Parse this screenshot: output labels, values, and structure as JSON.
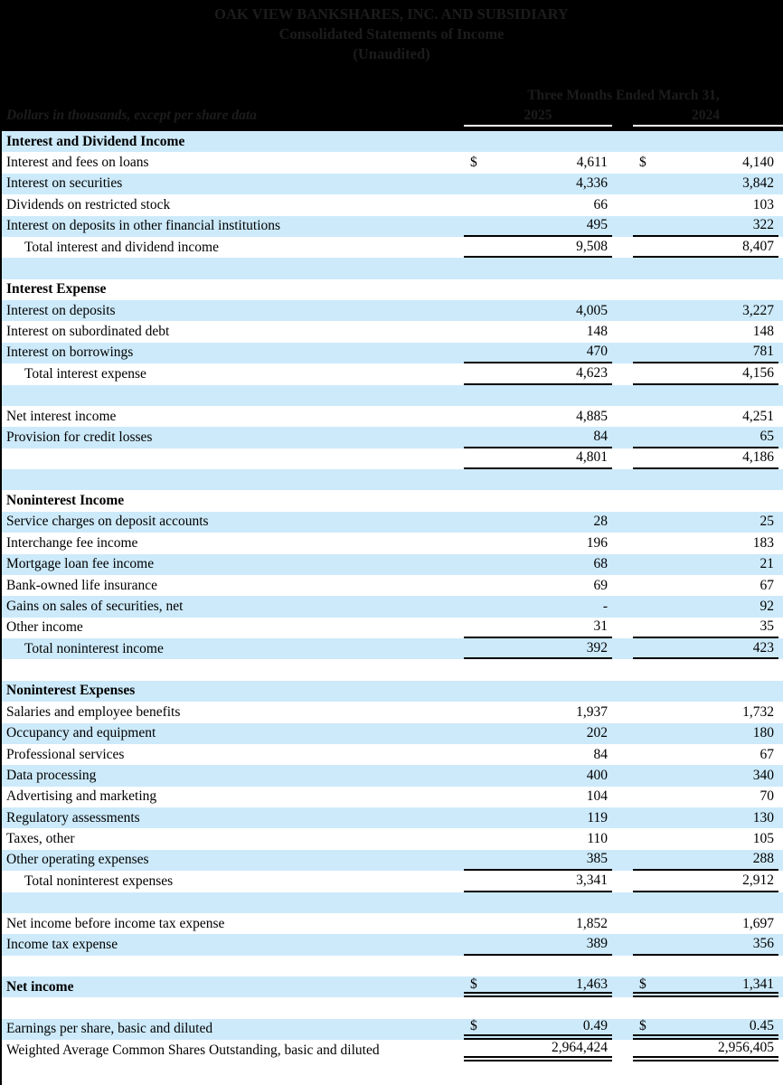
{
  "header": {
    "title1": "OAK VIEW BANKSHARES, INC. AND SUBSIDIARY",
    "title2": "Consolidated Statements of Income",
    "title3": "(Unaudited)",
    "units_note": "Dollars in thousands, except per share data",
    "period_header": "Three Months Ended March 31,",
    "years": [
      "2025",
      "2024"
    ]
  },
  "colors": {
    "header_bg": "#000000",
    "header_text": "#1c1c1c",
    "row_alt_blue": "#cdeafa",
    "row_white": "#ffffff",
    "rule_black": "#000000",
    "rule_white": "#ffffff"
  },
  "table": {
    "columns": [
      "label",
      "2025",
      "2024"
    ],
    "rows": [
      {
        "label": "Interest and Dividend Income",
        "bold": true
      },
      {
        "label": "Interest and fees on loans",
        "dollar": true,
        "v1": "4,611",
        "v2": "4,140"
      },
      {
        "label": "Interest on securities",
        "v1": "4,336",
        "v2": "3,842"
      },
      {
        "label": "Dividends on restricted stock",
        "v1": "66",
        "v2": "103"
      },
      {
        "label": "Interest on deposits in other financial institutions",
        "v1": "495",
        "v2": "322",
        "line": "single"
      },
      {
        "label": "Total interest and dividend income",
        "indent": true,
        "v1": "9,508",
        "v2": "8,407",
        "line": "single"
      },
      {},
      {
        "label": "Interest Expense",
        "bold": true
      },
      {
        "label": "Interest on deposits",
        "v1": "4,005",
        "v2": "3,227"
      },
      {
        "label": "Interest on subordinated debt",
        "v1": "148",
        "v2": "148"
      },
      {
        "label": "Interest on borrowings",
        "v1": "470",
        "v2": "781",
        "line": "single"
      },
      {
        "label": "Total interest expense",
        "indent": true,
        "v1": "4,623",
        "v2": "4,156",
        "line": "single"
      },
      {},
      {
        "label": "Net interest income",
        "v1": "4,885",
        "v2": "4,251"
      },
      {
        "label": "Provision for credit losses",
        "v1": "84",
        "v2": "65",
        "line": "single"
      },
      {
        "label": "",
        "v1": "4,801",
        "v2": "4,186",
        "line": "single"
      },
      {},
      {
        "label": "Noninterest Income",
        "bold": true
      },
      {
        "label": "Service charges on deposit accounts",
        "v1": "28",
        "v2": "25"
      },
      {
        "label": "Interchange fee income",
        "v1": "196",
        "v2": "183"
      },
      {
        "label": "Mortgage loan fee income",
        "v1": "68",
        "v2": "21"
      },
      {
        "label": "Bank-owned life insurance",
        "v1": "69",
        "v2": "67"
      },
      {
        "label": "Gains on sales of securities, net",
        "v1": "-",
        "v2": "92"
      },
      {
        "label": "Other income",
        "v1": "31",
        "v2": "35",
        "line": "single"
      },
      {
        "label": "Total noninterest income",
        "indent": true,
        "v1": "392",
        "v2": "423",
        "line": "single"
      },
      {},
      {
        "label": "Noninterest Expenses",
        "bold": true
      },
      {
        "label": "Salaries and employee benefits",
        "v1": "1,937",
        "v2": "1,732"
      },
      {
        "label": "Occupancy and equipment",
        "v1": "202",
        "v2": "180"
      },
      {
        "label": "Professional services",
        "v1": "84",
        "v2": "67"
      },
      {
        "label": "Data processing",
        "v1": "400",
        "v2": "340"
      },
      {
        "label": "Advertising and marketing",
        "v1": "104",
        "v2": "70"
      },
      {
        "label": "Regulatory assessments",
        "v1": "119",
        "v2": "130"
      },
      {
        "label": "Taxes, other",
        "v1": "110",
        "v2": "105"
      },
      {
        "label": "Other operating expenses",
        "v1": "385",
        "v2": "288",
        "line": "single"
      },
      {
        "label": "Total noninterest expenses",
        "indent": true,
        "v1": "3,341",
        "v2": "2,912",
        "line": "single"
      },
      {},
      {
        "label": "Net income before income tax expense",
        "v1": "1,852",
        "v2": "1,697"
      },
      {
        "label": "Income tax expense",
        "v1": "389",
        "v2": "356",
        "line": "single"
      },
      {},
      {
        "label": "Net income",
        "bold": true,
        "dollar": true,
        "v1": "1,463",
        "v2": "1,341",
        "line": "double"
      },
      {},
      {
        "label": "Earnings per share, basic and diluted",
        "dollar": true,
        "v1": "0.49",
        "v2": "0.45",
        "line": "double"
      },
      {
        "label": "Weighted Average Common Shares Outstanding, basic and diluted",
        "v1": "2,964,424",
        "v2": "2,956,405",
        "line": "double"
      }
    ]
  }
}
